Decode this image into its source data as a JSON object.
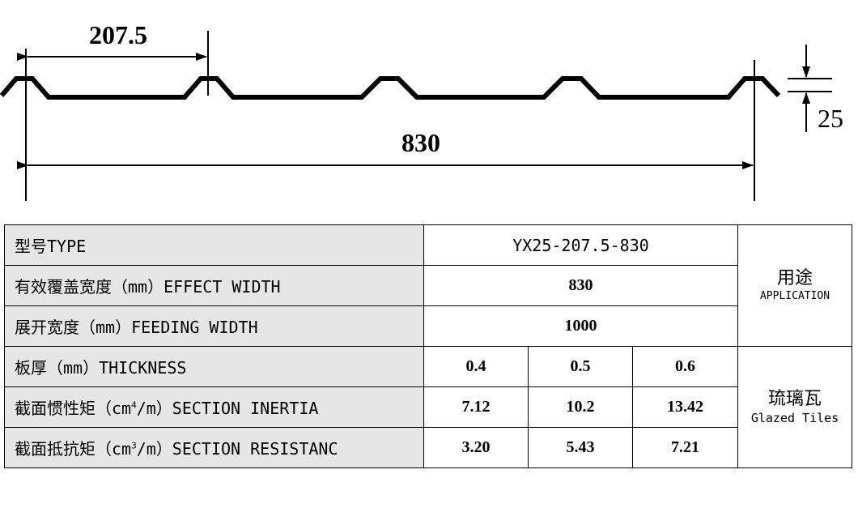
{
  "drawing": {
    "pitch_label": "207.5",
    "width_label": "830",
    "height_label": "25"
  },
  "table": {
    "rows": [
      {
        "label": "型号TYPE",
        "value": "YX25-207.5-830"
      },
      {
        "label": "有效覆盖宽度（mm）EFFECT WIDTH",
        "value": "830"
      },
      {
        "label": "展开宽度（mm）FEEDING WIDTH",
        "value": "1000"
      },
      {
        "label": "板厚（mm）THICKNESS",
        "values": [
          "0.4",
          "0.5",
          "0.6"
        ]
      },
      {
        "label_pre": "截面惯性矩（cm",
        "label_sup": "4",
        "label_post": "/m）SECTION INERTIA",
        "values": [
          "7.12",
          "10.2",
          "13.42"
        ]
      },
      {
        "label_pre": "截面抵抗矩（cm",
        "label_sup": "3",
        "label_post": "/m）SECTION RESISTANC",
        "values": [
          "3.20",
          "5.43",
          "7.21"
        ]
      }
    ],
    "application": {
      "cn": "用途",
      "en": "APPLICATION"
    },
    "use": {
      "cn": "琉璃瓦",
      "en": "Glazed Tiles"
    }
  }
}
